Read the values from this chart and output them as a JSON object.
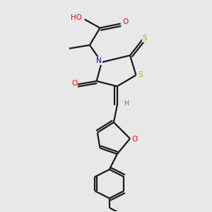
{
  "background_color": "#e8e8e8",
  "bond_color": "#1a1a1a",
  "atom_colors": {
    "O": "#ff0000",
    "N": "#0000cc",
    "S": "#bbaa00",
    "H": "#2e8b57",
    "C": "#1a1a1a"
  },
  "figsize": [
    3.0,
    3.0
  ],
  "dpi": 100
}
